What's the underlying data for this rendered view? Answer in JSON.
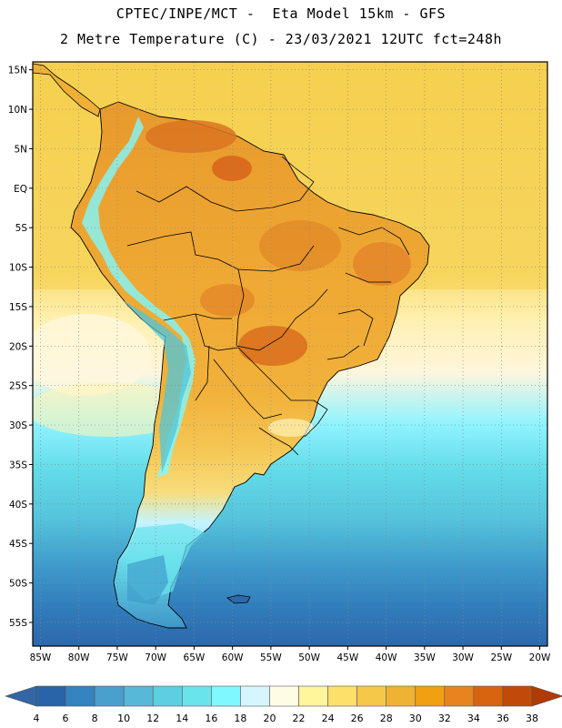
{
  "title": {
    "line1": "CPTEC/INPE/MCT -  Eta Model 15km - GFS",
    "line2": "2 Metre Temperature (C) - 23/03/2021 12UTC fct=248h"
  },
  "map": {
    "lon_range": [
      -86,
      -19
    ],
    "lat_range": [
      -58,
      16
    ],
    "lat_ticks": [
      {
        "value": 15,
        "label": "15N"
      },
      {
        "value": 10,
        "label": "10N"
      },
      {
        "value": 5,
        "label": "5N"
      },
      {
        "value": 0,
        "label": "EQ"
      },
      {
        "value": -5,
        "label": "5S"
      },
      {
        "value": -10,
        "label": "10S"
      },
      {
        "value": -15,
        "label": "15S"
      },
      {
        "value": -20,
        "label": "20S"
      },
      {
        "value": -25,
        "label": "25S"
      },
      {
        "value": -30,
        "label": "30S"
      },
      {
        "value": -35,
        "label": "35S"
      },
      {
        "value": -40,
        "label": "40S"
      },
      {
        "value": -45,
        "label": "45S"
      },
      {
        "value": -50,
        "label": "50S"
      },
      {
        "value": -55,
        "label": "55S"
      }
    ],
    "lon_ticks": [
      {
        "value": -85,
        "label": "85W"
      },
      {
        "value": -80,
        "label": "80W"
      },
      {
        "value": -75,
        "label": "75W"
      },
      {
        "value": -70,
        "label": "70W"
      },
      {
        "value": -65,
        "label": "65W"
      },
      {
        "value": -60,
        "label": "60W"
      },
      {
        "value": -55,
        "label": "55W"
      },
      {
        "value": -50,
        "label": "50W"
      },
      {
        "value": -45,
        "label": "45W"
      },
      {
        "value": -40,
        "label": "40W"
      },
      {
        "value": -35,
        "label": "35W"
      },
      {
        "value": -30,
        "label": "30W"
      },
      {
        "value": -25,
        "label": "25W"
      },
      {
        "value": -20,
        "label": "20W"
      }
    ],
    "gridlines": "dotted"
  },
  "colorbar": {
    "labels": [
      "4",
      "6",
      "8",
      "10",
      "12",
      "14",
      "16",
      "18",
      "20",
      "22",
      "24",
      "26",
      "28",
      "30",
      "32",
      "34",
      "36",
      "38"
    ],
    "colors": [
      "#2a64a8",
      "#3583c0",
      "#4aa0cc",
      "#57b8d8",
      "#5ccfe0",
      "#6ae4ec",
      "#7ff8ff",
      "#d6f6ff",
      "#fffce6",
      "#fff59a",
      "#fde06a",
      "#f6c84a",
      "#efb232",
      "#f0a010",
      "#e88420",
      "#d86410",
      "#c24a08"
    ],
    "low_color": "#3266a4",
    "high_color": "#b03a04"
  },
  "colors": {
    "ocean_warm": "#f6cf4e",
    "land_base": "#efb035",
    "land_hot": "#de7a1e",
    "coast_line": "#000000"
  }
}
